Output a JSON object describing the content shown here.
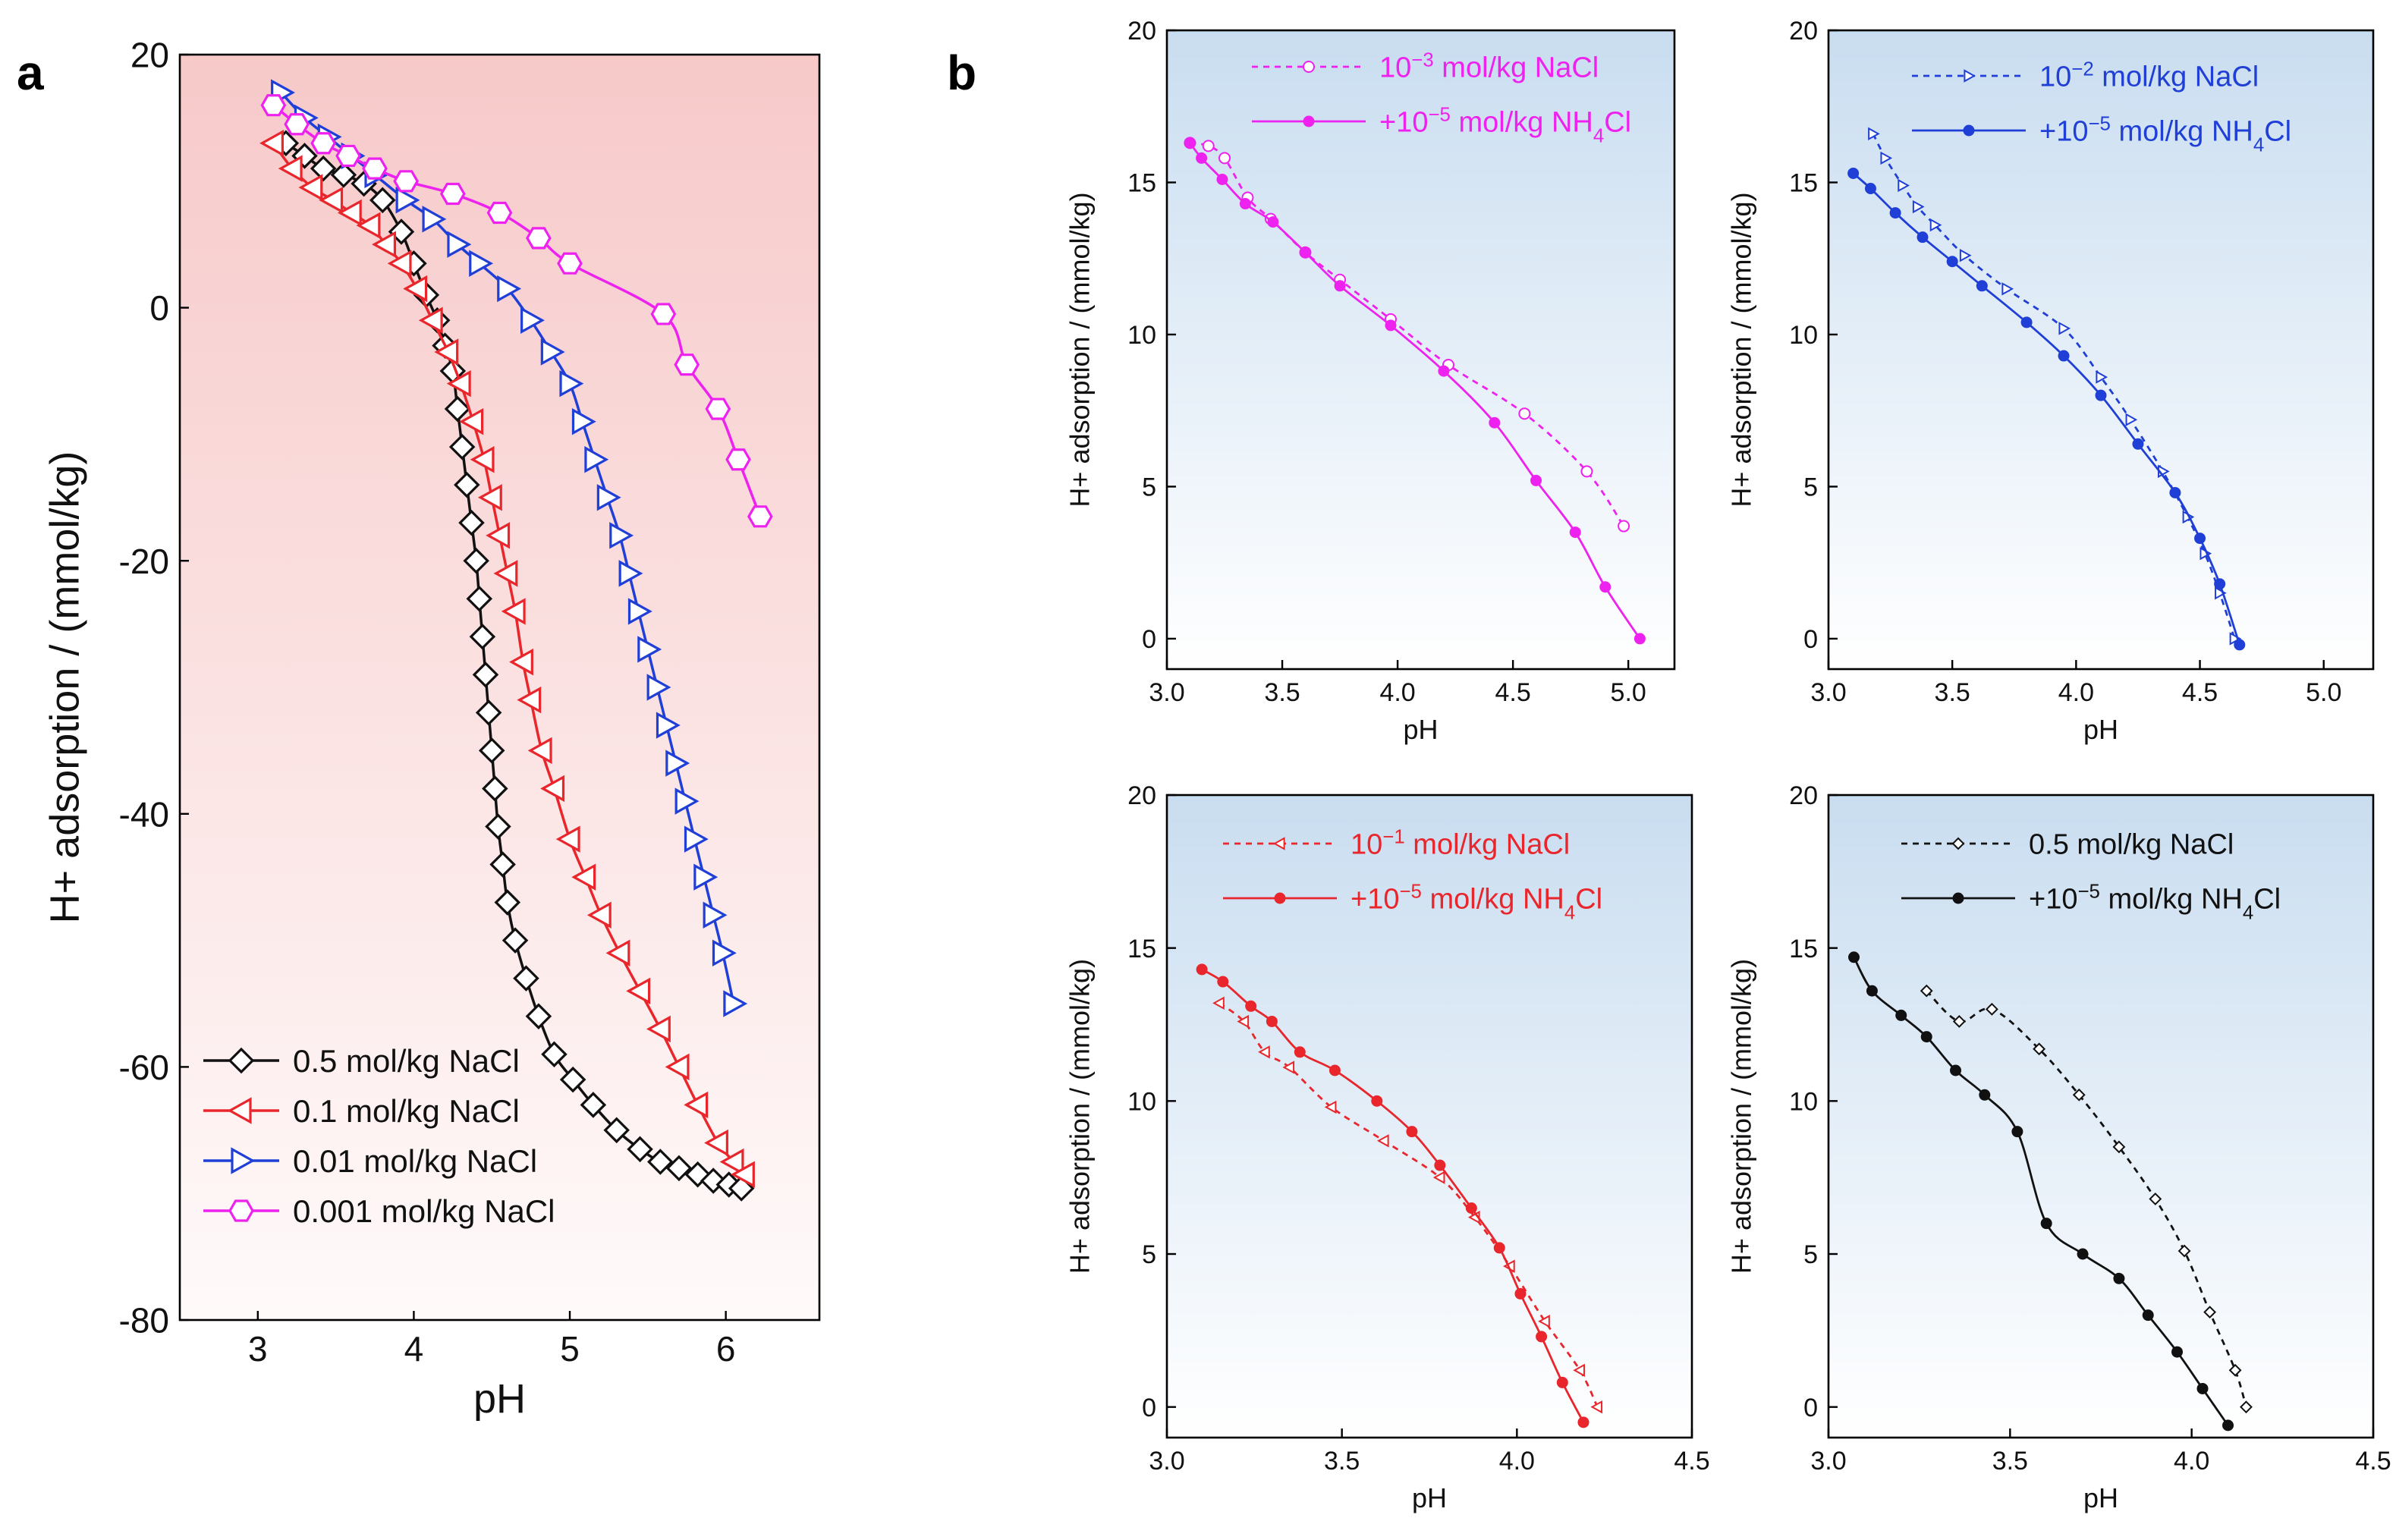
{
  "figure": {
    "label_a": "a",
    "label_b": "b"
  },
  "chart_data": [
    {
      "id": "a",
      "type": "line",
      "xlabel": "pH",
      "ylabel": "H+ adsorption / (mmol/kg)",
      "xlim": [
        2.5,
        6.6
      ],
      "ylim": [
        -80,
        20
      ],
      "xticks": [
        3,
        4,
        5,
        6
      ],
      "yticks": [
        -80,
        -60,
        -40,
        -20,
        0,
        20
      ],
      "legend_position": "bottom-left",
      "background": "pink-gradient",
      "series": [
        {
          "name": "0.5 mol/kg  NaCl",
          "color": "#111111",
          "marker": "diamond",
          "x": [
            3.18,
            3.3,
            3.42,
            3.55,
            3.68,
            3.8,
            3.92,
            4.0,
            4.08,
            4.15,
            4.2,
            4.25,
            4.28,
            4.31,
            4.34,
            4.37,
            4.4,
            4.42,
            4.44,
            4.46,
            4.48,
            4.5,
            4.52,
            4.54,
            4.57,
            4.6,
            4.65,
            4.72,
            4.8,
            4.9,
            5.02,
            5.15,
            5.3,
            5.45,
            5.58,
            5.7,
            5.82,
            5.92,
            6.02,
            6.1
          ],
          "y": [
            13,
            12,
            11,
            10.5,
            9.8,
            8.5,
            6,
            3.5,
            1,
            -1,
            -3,
            -5,
            -8,
            -11,
            -14,
            -17,
            -20,
            -23,
            -26,
            -29,
            -32,
            -35,
            -38,
            -41,
            -44,
            -47,
            -50,
            -53,
            -56,
            -59,
            -61,
            -63,
            -65,
            -66.5,
            -67.5,
            -68,
            -68.5,
            -69,
            -69.3,
            -69.6
          ]
        },
        {
          "name": "0.1 mol/kg NaCl",
          "color": "#e8262c",
          "marker": "triangle-left",
          "x": [
            3.1,
            3.22,
            3.35,
            3.48,
            3.6,
            3.72,
            3.82,
            3.92,
            4.02,
            4.12,
            4.22,
            4.3,
            4.38,
            4.45,
            4.5,
            4.55,
            4.6,
            4.65,
            4.7,
            4.75,
            4.82,
            4.9,
            5.0,
            5.1,
            5.2,
            5.32,
            5.45,
            5.58,
            5.7,
            5.82,
            5.95,
            6.05,
            6.12
          ],
          "y": [
            13,
            11,
            9.5,
            8.5,
            7.5,
            6.5,
            5,
            3.5,
            1.5,
            -1,
            -3.5,
            -6,
            -9,
            -12,
            -15,
            -18,
            -21,
            -24,
            -28,
            -31,
            -35,
            -38,
            -42,
            -45,
            -48,
            -51,
            -54,
            -57,
            -60,
            -63,
            -66,
            -67.5,
            -68.5
          ]
        },
        {
          "name": "0.01 mol/kg NaCl",
          "color": "#1f3fd6",
          "marker": "triangle-right",
          "x": [
            3.15,
            3.3,
            3.45,
            3.6,
            3.75,
            3.95,
            4.12,
            4.28,
            4.42,
            4.6,
            4.75,
            4.88,
            5.0,
            5.08,
            5.16,
            5.24,
            5.32,
            5.38,
            5.44,
            5.5,
            5.56,
            5.62,
            5.68,
            5.74,
            5.8,
            5.86,
            5.92,
            5.98,
            6.05
          ],
          "y": [
            17,
            15,
            13.5,
            12,
            10.5,
            8.5,
            7,
            5,
            3.5,
            1.5,
            -1,
            -3.5,
            -6,
            -9,
            -12,
            -15,
            -18,
            -21,
            -24,
            -27,
            -30,
            -33,
            -36,
            -39,
            -42,
            -45,
            -48,
            -51,
            -55
          ]
        },
        {
          "name": "0.001 mol/kg NaCl",
          "color": "#ee22ee",
          "marker": "hexagon",
          "x": [
            3.1,
            3.25,
            3.42,
            3.58,
            3.75,
            3.95,
            4.25,
            4.55,
            4.8,
            5.0,
            5.6,
            5.75,
            5.95,
            6.08,
            6.22
          ],
          "y": [
            16,
            14.5,
            13,
            12,
            11,
            10,
            9,
            7.5,
            5.5,
            3.5,
            -0.5,
            -4.5,
            -8,
            -12,
            -16.5
          ]
        }
      ]
    },
    {
      "id": "b1",
      "type": "line",
      "xlabel": "pH",
      "ylabel": "H+ adsorption / (mmol/kg)",
      "xlim": [
        3.0,
        5.2
      ],
      "ylim": [
        -1,
        20
      ],
      "xticks": [
        3.0,
        3.5,
        4.0,
        4.5,
        5.0
      ],
      "yticks": [
        0,
        5,
        10,
        15,
        20
      ],
      "legend_position": "top-right",
      "series": [
        {
          "name": "10",
          "label_sup": "−3",
          "label_rest": " mol/kg NaCl",
          "color": "#ee22ee",
          "marker": "open-circle",
          "dash": true,
          "x": [
            3.1,
            3.18,
            3.25,
            3.35,
            3.45,
            3.6,
            3.75,
            3.97,
            4.22,
            4.55,
            4.82,
            4.98
          ],
          "y": [
            16.3,
            16.2,
            15.8,
            14.5,
            13.8,
            12.7,
            11.8,
            10.5,
            9.0,
            7.4,
            5.5,
            3.7
          ]
        },
        {
          "name": "+10",
          "label_sup": "−5",
          "label_rest": " mol/kg NH",
          "label_sub": "4",
          "label_tail": "Cl",
          "color": "#ee22ee",
          "marker": "filled-dot",
          "dash": false,
          "x": [
            3.1,
            3.15,
            3.24,
            3.34,
            3.46,
            3.6,
            3.75,
            3.97,
            4.2,
            4.42,
            4.6,
            4.77,
            4.9,
            5.05
          ],
          "y": [
            16.3,
            15.8,
            15.1,
            14.3,
            13.7,
            12.7,
            11.6,
            10.3,
            8.8,
            7.1,
            5.2,
            3.5,
            1.7,
            0.0
          ]
        }
      ]
    },
    {
      "id": "b2",
      "type": "line",
      "xlabel": "pH",
      "ylabel": "H+ adsorption / (mmol/kg)",
      "xlim": [
        3.0,
        5.2
      ],
      "ylim": [
        -1,
        20
      ],
      "xticks": [
        3.0,
        3.5,
        4.0,
        4.5,
        5.0
      ],
      "yticks": [
        0,
        5,
        10,
        15,
        20
      ],
      "legend_position": "top-right",
      "series": [
        {
          "name": "10",
          "label_sup": "−2",
          "label_rest": " mol/kg NaCl",
          "color": "#1f3fd6",
          "marker": "open-triangle-right",
          "dash": true,
          "x": [
            3.18,
            3.23,
            3.3,
            3.36,
            3.43,
            3.55,
            3.72,
            3.95,
            4.1,
            4.22,
            4.35,
            4.45,
            4.52,
            4.58,
            4.64
          ],
          "y": [
            16.6,
            15.8,
            14.9,
            14.2,
            13.6,
            12.6,
            11.5,
            10.2,
            8.6,
            7.2,
            5.5,
            4.0,
            2.8,
            1.5,
            0.0
          ]
        },
        {
          "name": "+10",
          "label_sup": "−5",
          "label_rest": " mol/kg NH",
          "label_sub": "4",
          "label_tail": "Cl",
          "color": "#1f3fd6",
          "marker": "filled-dot",
          "dash": false,
          "x": [
            3.1,
            3.17,
            3.27,
            3.38,
            3.5,
            3.62,
            3.8,
            3.95,
            4.1,
            4.25,
            4.4,
            4.5,
            4.58,
            4.66
          ],
          "y": [
            15.3,
            14.8,
            14.0,
            13.2,
            12.4,
            11.6,
            10.4,
            9.3,
            8.0,
            6.4,
            4.8,
            3.3,
            1.8,
            -0.2
          ]
        }
      ]
    },
    {
      "id": "b3",
      "type": "line",
      "xlabel": "pH",
      "ylabel": "H+ adsorption / (mmol/kg)",
      "xlim": [
        3.0,
        4.5
      ],
      "ylim": [
        -1,
        20
      ],
      "xticks": [
        3.0,
        3.5,
        4.0,
        4.5
      ],
      "yticks": [
        0,
        5,
        10,
        15,
        20
      ],
      "legend_position": "top-right",
      "series": [
        {
          "name": "10",
          "label_sup": "−1",
          "label_rest": " mol/kg NaCl",
          "color": "#e8262c",
          "marker": "open-triangle-left",
          "dash": true,
          "x": [
            3.15,
            3.22,
            3.28,
            3.35,
            3.47,
            3.62,
            3.78,
            3.88,
            3.98,
            4.08,
            4.18,
            4.23
          ],
          "y": [
            13.2,
            12.6,
            11.6,
            11.1,
            9.8,
            8.7,
            7.5,
            6.2,
            4.6,
            2.8,
            1.2,
            0.0
          ]
        },
        {
          "name": "+10",
          "label_sup": "−5",
          "label_rest": " mol/kg NH",
          "label_sub": "4",
          "label_tail": "Cl",
          "color": "#e8262c",
          "marker": "filled-dot",
          "dash": false,
          "x": [
            3.1,
            3.16,
            3.24,
            3.3,
            3.38,
            3.48,
            3.6,
            3.7,
            3.78,
            3.87,
            3.95,
            4.01,
            4.07,
            4.13,
            4.19
          ],
          "y": [
            14.3,
            13.9,
            13.1,
            12.6,
            11.6,
            11.0,
            10.0,
            9.0,
            7.9,
            6.5,
            5.2,
            3.7,
            2.3,
            0.8,
            -0.5
          ]
        }
      ]
    },
    {
      "id": "b4",
      "type": "line",
      "xlabel": "pH",
      "ylabel": "H+ adsorption / (mmol/kg)",
      "xlim": [
        3.0,
        4.5
      ],
      "ylim": [
        -1,
        20
      ],
      "xticks": [
        3.0,
        3.5,
        4.0,
        4.5
      ],
      "yticks": [
        0,
        5,
        10,
        15,
        20
      ],
      "legend_position": "top-right",
      "series": [
        {
          "name": "0.5 mol/kg NaCl",
          "color": "#111111",
          "marker": "open-diamond",
          "dash": true,
          "x": [
            3.27,
            3.36,
            3.45,
            3.58,
            3.69,
            3.8,
            3.9,
            3.98,
            4.05,
            4.12,
            4.15
          ],
          "y": [
            13.6,
            12.6,
            13.0,
            11.7,
            10.2,
            8.5,
            6.8,
            5.1,
            3.1,
            1.2,
            0.0
          ]
        },
        {
          "name": "+10",
          "label_sup": "−5",
          "label_rest": " mol/kg NH",
          "label_sub": "4",
          "label_tail": "Cl",
          "color": "#111111",
          "marker": "filled-dot",
          "dash": false,
          "x": [
            3.07,
            3.12,
            3.2,
            3.27,
            3.35,
            3.43,
            3.52,
            3.6,
            3.7,
            3.8,
            3.88,
            3.96,
            4.03,
            4.1
          ],
          "y": [
            14.7,
            13.6,
            12.8,
            12.1,
            11.0,
            10.2,
            9.0,
            6.0,
            5.0,
            4.2,
            3.0,
            1.8,
            0.6,
            -0.6
          ]
        }
      ]
    }
  ]
}
